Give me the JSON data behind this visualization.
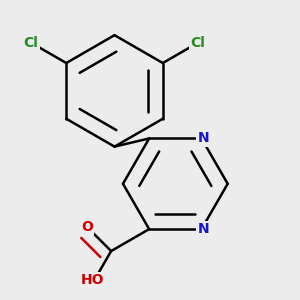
{
  "background_color": "#ececec",
  "bond_color": "#000000",
  "bond_width": 1.8,
  "atom_colors": {
    "N": "#1515cc",
    "O": "#cc0000",
    "Cl": "#228B22",
    "H": "#666666"
  },
  "font_size": 10
}
